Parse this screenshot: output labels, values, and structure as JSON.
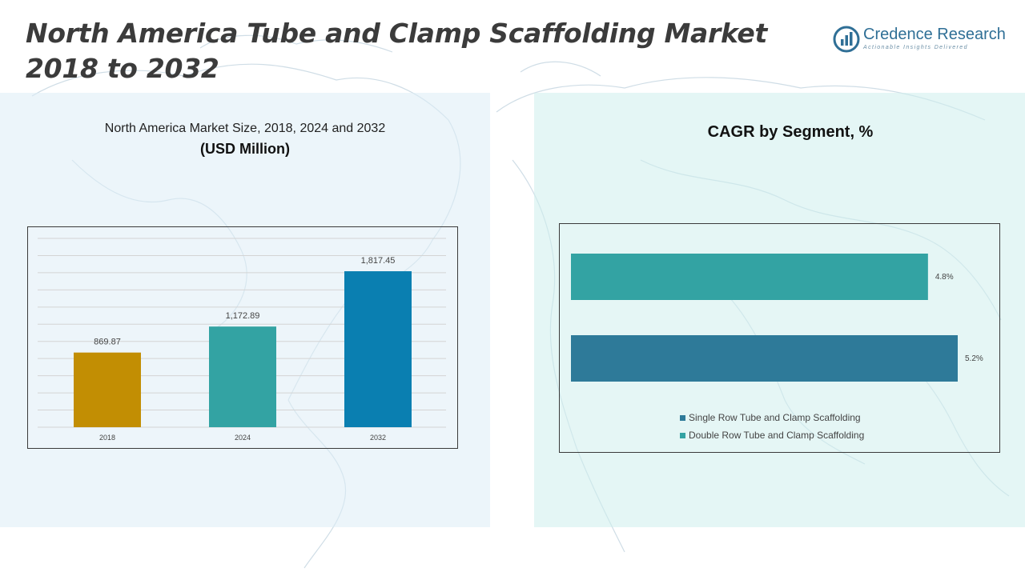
{
  "title_line1": "North America Tube and Clamp Scaffolding Market",
  "title_line2": "2018 to 2032",
  "logo": {
    "name": "Credence Research",
    "tagline": "Actionable Insights Delivered",
    "icon": "chart-logo-icon"
  },
  "left_panel": {
    "subtitle": "North America Market Size, 2018, 2024 and 2032",
    "unit": "(USD Million)"
  },
  "right_panel": {
    "title": "CAGR by Segment, %"
  },
  "colors": {
    "bar_2018": "#c28e03",
    "bar_2024": "#33a3a3",
    "bar_2032": "#0a7fb1",
    "hbar_double": "#33a3a3",
    "hbar_single": "#2e7a99"
  },
  "chart_data": [
    {
      "type": "bar",
      "categories": [
        "2018",
        "2024",
        "2032"
      ],
      "values": [
        869.87,
        1172.89,
        1817.45
      ],
      "data_labels": [
        "869.87",
        "1,172.89",
        "1,817.45"
      ],
      "title": "North America Market Size, 2018, 2024 and 2032",
      "ylabel": "(USD Million)",
      "ylim": [
        0,
        2200
      ],
      "grid": true
    },
    {
      "type": "bar",
      "orientation": "horizontal",
      "categories": [
        "Double Row Tube and Clamp Scaffolding",
        "Single Row Tube and Clamp Scaffolding"
      ],
      "values": [
        4.8,
        5.2
      ],
      "data_labels": [
        "4.8%",
        "5.2%"
      ],
      "title": "CAGR by Segment, %",
      "xlim": [
        0,
        5.2
      ],
      "legend": {
        "placement": "bottom",
        "entries": [
          "Single Row Tube and Clamp Scaffolding",
          "Double Row Tube and Clamp Scaffolding"
        ]
      }
    }
  ]
}
